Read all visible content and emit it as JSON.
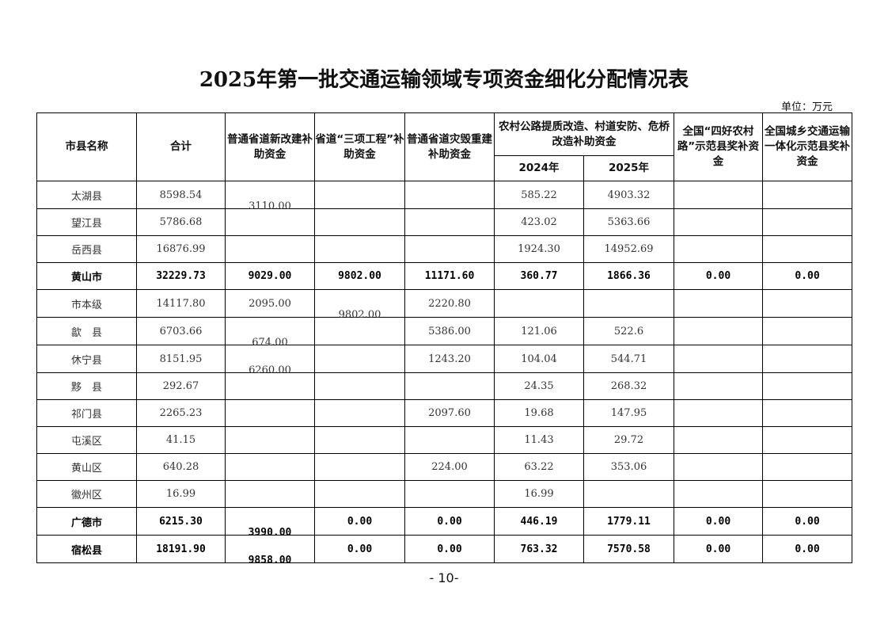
{
  "title": "2025年第一批交通运输领域专项资金细化分配情况表",
  "unit": "单位：万元",
  "headers": {
    "name": "市县名称",
    "total": "合计",
    "c1": "普通省道新改建补助资金",
    "c2": "省道“三项工程”补助资金",
    "c3": "普通省道灾毁重建补助资金",
    "c4": "农村公路提质改造、村道安防、危桥改造补助资金",
    "c4a": "2024年",
    "c4b": "2025年",
    "c5": "全国“四好农村路”示范县奖补资金",
    "c6": "全国城乡交通运输一体化示范县奖补资金"
  },
  "rows": [
    {
      "bold": false,
      "cells": [
        "太湖县",
        "8598.54",
        "3110.00",
        "",
        "",
        "585.22",
        "4903.32",
        "",
        ""
      ]
    },
    {
      "bold": false,
      "cells": [
        "望江县",
        "5786.68",
        "",
        "",
        "",
        "423.02",
        "5363.66",
        "",
        ""
      ]
    },
    {
      "bold": false,
      "cells": [
        "岳西县",
        "16876.99",
        "",
        "",
        "",
        "1924.30",
        "14952.69",
        "",
        ""
      ]
    },
    {
      "bold": true,
      "cells": [
        "黄山市",
        "32229.73",
        "9029.00",
        "9802.00",
        "11171.60",
        "360.77",
        "1866.36",
        "0.00",
        "0.00"
      ]
    },
    {
      "bold": false,
      "cells": [
        "市本级",
        "14117.80",
        "2095.00",
        "9802.00",
        "2220.80",
        "",
        "",
        "",
        ""
      ]
    },
    {
      "bold": false,
      "cells": [
        "歙　县",
        "6703.66",
        "674.00",
        "",
        "5386.00",
        "121.06",
        "522.6",
        "",
        ""
      ]
    },
    {
      "bold": false,
      "cells": [
        "休宁县",
        "8151.95",
        "6260.00",
        "",
        "1243.20",
        "104.04",
        "544.71",
        "",
        ""
      ]
    },
    {
      "bold": false,
      "cells": [
        "黟　县",
        "292.67",
        "",
        "",
        "",
        "24.35",
        "268.32",
        "",
        ""
      ]
    },
    {
      "bold": false,
      "cells": [
        "祁门县",
        "2265.23",
        "",
        "",
        "2097.60",
        "19.68",
        "147.95",
        "",
        ""
      ]
    },
    {
      "bold": false,
      "cells": [
        "屯溪区",
        "41.15",
        "",
        "",
        "",
        "11.43",
        "29.72",
        "",
        ""
      ]
    },
    {
      "bold": false,
      "cells": [
        "黄山区",
        "640.28",
        "",
        "",
        "224.00",
        "63.22",
        "353.06",
        "",
        ""
      ]
    },
    {
      "bold": false,
      "cells": [
        "徽州区",
        "16.99",
        "",
        "",
        "",
        "16.99",
        "",
        "",
        ""
      ]
    },
    {
      "bold": true,
      "cells": [
        "广德市",
        "6215.30",
        "3990.00",
        "0.00",
        "0.00",
        "446.19",
        "1779.11",
        "0.00",
        "0.00"
      ]
    },
    {
      "bold": true,
      "cells": [
        "宿松县",
        "18191.90",
        "9858.00",
        "0.00",
        "0.00",
        "763.32",
        "7570.58",
        "0.00",
        "0.00"
      ]
    }
  ],
  "page_number": "- 10-"
}
